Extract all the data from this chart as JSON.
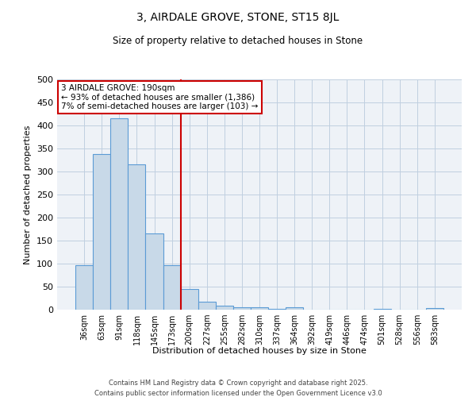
{
  "title": "3, AIRDALE GROVE, STONE, ST15 8JL",
  "subtitle": "Size of property relative to detached houses in Stone",
  "xlabel": "Distribution of detached houses by size in Stone",
  "ylabel": "Number of detached properties",
  "bar_labels": [
    "36sqm",
    "63sqm",
    "91sqm",
    "118sqm",
    "145sqm",
    "173sqm",
    "200sqm",
    "227sqm",
    "255sqm",
    "282sqm",
    "310sqm",
    "337sqm",
    "364sqm",
    "392sqm",
    "419sqm",
    "446sqm",
    "474sqm",
    "501sqm",
    "528sqm",
    "556sqm",
    "583sqm"
  ],
  "bar_values": [
    97,
    338,
    415,
    315,
    165,
    97,
    45,
    17,
    8,
    5,
    5,
    1,
    5,
    0,
    0,
    0,
    0,
    2,
    0,
    0,
    4
  ],
  "bar_color": "#c8d9e8",
  "bar_edge_color": "#5b9bd5",
  "vline_x": 6.0,
  "vline_color": "#cc0000",
  "annotation_text": "3 AIRDALE GROVE: 190sqm\n← 93% of detached houses are smaller (1,386)\n7% of semi-detached houses are larger (103) →",
  "annotation_box_color": "#cc0000",
  "ylim": [
    0,
    500
  ],
  "yticks": [
    0,
    50,
    100,
    150,
    200,
    250,
    300,
    350,
    400,
    450,
    500
  ],
  "grid_color": "#c0cfe0",
  "background_color": "#eef2f7",
  "footer_line1": "Contains HM Land Registry data © Crown copyright and database right 2025.",
  "footer_line2": "Contains public sector information licensed under the Open Government Licence v3.0"
}
